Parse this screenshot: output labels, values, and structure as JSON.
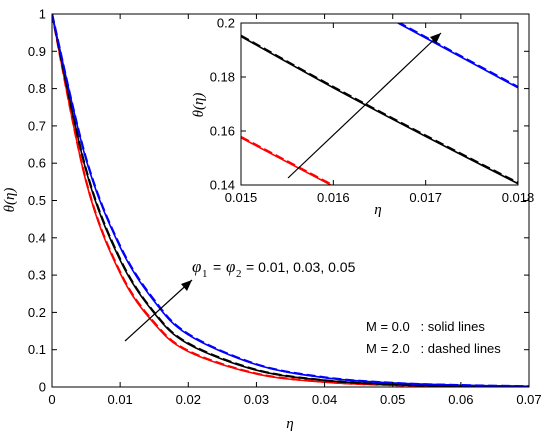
{
  "chart_data": [
    {
      "type": "line",
      "xlabel": "η",
      "ylabel": "θ(η)",
      "xlim": [
        0,
        0.07
      ],
      "ylim": [
        0,
        1
      ],
      "x_ticks": [
        "0",
        "0.01",
        "0.02",
        "0.03",
        "0.04",
        "0.05",
        "0.06",
        "0.07"
      ],
      "y_ticks": [
        "0",
        "0.1",
        "0.2",
        "0.3",
        "0.4",
        "0.5",
        "0.6",
        "0.7",
        "0.8",
        "0.9",
        "1"
      ],
      "grid": false,
      "series": [
        {
          "color": "#ff0000",
          "style": "solid",
          "x": [
            0,
            0.005,
            0.01,
            0.015,
            0.02,
            0.03,
            0.04,
            0.05,
            0.06,
            0.07
          ],
          "y": [
            1,
            0.55,
            0.305,
            0.17,
            0.095,
            0.035,
            0.013,
            0.005,
            0.002,
            0.001
          ]
        },
        {
          "color": "#ff0000",
          "style": "dashed",
          "x": [
            0,
            0.005,
            0.01,
            0.015,
            0.02,
            0.03,
            0.04,
            0.05,
            0.06,
            0.07
          ],
          "y": [
            1,
            0.553,
            0.308,
            0.173,
            0.097,
            0.036,
            0.014,
            0.005,
            0.002,
            0.001
          ]
        },
        {
          "color": "#000000",
          "style": "solid",
          "x": [
            0,
            0.005,
            0.01,
            0.015,
            0.02,
            0.03,
            0.04,
            0.05,
            0.06,
            0.07
          ],
          "y": [
            1,
            0.58,
            0.34,
            0.198,
            0.115,
            0.045,
            0.018,
            0.007,
            0.003,
            0.001
          ]
        },
        {
          "color": "#000000",
          "style": "dashed",
          "x": [
            0,
            0.005,
            0.01,
            0.015,
            0.02,
            0.03,
            0.04,
            0.05,
            0.06,
            0.07
          ],
          "y": [
            1,
            0.583,
            0.343,
            0.2,
            0.117,
            0.046,
            0.018,
            0.007,
            0.003,
            0.001
          ]
        },
        {
          "color": "#0000ff",
          "style": "solid",
          "x": [
            0,
            0.005,
            0.01,
            0.015,
            0.02,
            0.03,
            0.04,
            0.05,
            0.06,
            0.07
          ],
          "y": [
            1,
            0.61,
            0.375,
            0.23,
            0.14,
            0.06,
            0.025,
            0.011,
            0.005,
            0.002
          ]
        },
        {
          "color": "#0000ff",
          "style": "dashed",
          "x": [
            0,
            0.005,
            0.01,
            0.015,
            0.02,
            0.03,
            0.04,
            0.05,
            0.06,
            0.07
          ],
          "y": [
            1,
            0.613,
            0.378,
            0.233,
            0.142,
            0.061,
            0.026,
            0.011,
            0.005,
            0.002
          ]
        }
      ],
      "annotations": {
        "phi_symbol": "φ",
        "phi_sub_1": "1",
        "phi_sub_2": "2",
        "equals": "=",
        "phi_values": "= 0.01, 0.03, 0.05",
        "legend_solid": "M = 0.0   : solid lines",
        "legend_dashed": "M = 2.0   : dashed lines"
      }
    },
    {
      "type": "line",
      "xlabel": "η",
      "ylabel": "θ(η)",
      "xlim": [
        0.015,
        0.018
      ],
      "ylim": [
        0.14,
        0.2
      ],
      "x_ticks": [
        "0.015",
        "0.016",
        "0.017",
        "0.018"
      ],
      "y_ticks": [
        "0.14",
        "0.16",
        "0.18",
        "0.2"
      ],
      "grid": false,
      "series": [
        {
          "color": "#ff0000",
          "style": "solid",
          "x": [
            0.015,
            0.016
          ],
          "y": [
            0.1575,
            0.1395
          ]
        },
        {
          "color": "#ff0000",
          "style": "dashed",
          "x": [
            0.015,
            0.016
          ],
          "y": [
            0.1578,
            0.1398
          ]
        },
        {
          "color": "#000000",
          "style": "solid",
          "x": [
            0.015,
            0.016,
            0.017,
            0.018
          ],
          "y": [
            0.195,
            0.176,
            0.158,
            0.1405
          ]
        },
        {
          "color": "#000000",
          "style": "dashed",
          "x": [
            0.015,
            0.016,
            0.017,
            0.018
          ],
          "y": [
            0.1953,
            0.1763,
            0.1583,
            0.1408
          ]
        },
        {
          "color": "#0000ff",
          "style": "solid",
          "x": [
            0.0167,
            0.018
          ],
          "y": [
            0.2,
            0.176
          ]
        },
        {
          "color": "#0000ff",
          "style": "dashed",
          "x": [
            0.0167,
            0.018
          ],
          "y": [
            0.2003,
            0.1763
          ]
        }
      ]
    }
  ]
}
